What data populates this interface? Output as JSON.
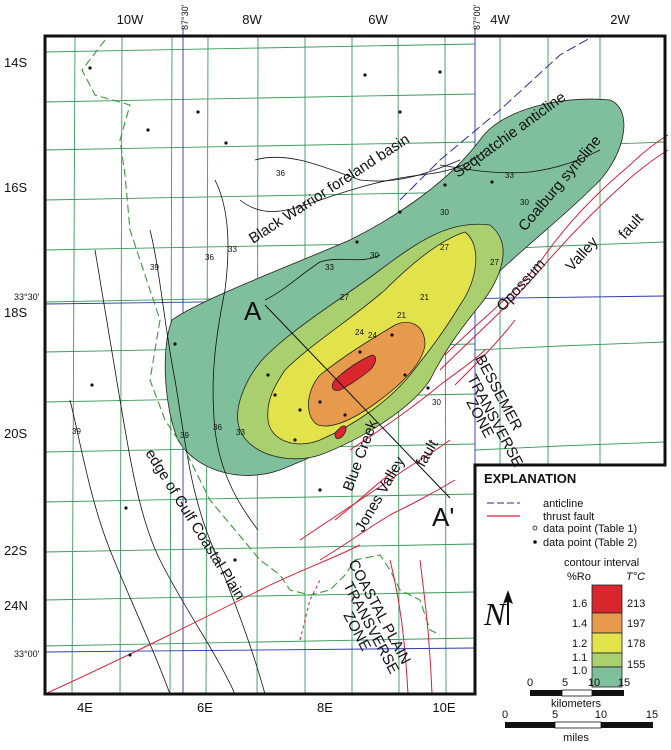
{
  "axes": {
    "top_ranges": [
      "10W",
      "8W",
      "6W",
      "4W",
      "2W"
    ],
    "bottom_ranges": [
      "4E",
      "6E",
      "8E",
      "10E"
    ],
    "left_townships": [
      "14S",
      "16S",
      "18S",
      "20S",
      "22S",
      "24N"
    ],
    "meridians": [
      "87°30'",
      "87°00'"
    ],
    "parallels": [
      "33°30'",
      "33°00'"
    ]
  },
  "features": {
    "sequatchie": "Sequatchie anticline",
    "black_warrior": "Black Warrior foreland basin",
    "coalburg": "Coalburg syncline",
    "opossum": "Opossum",
    "valley": "Valley",
    "fault": "fault",
    "bessemer": "BESSEMER",
    "transverse": "TRANSVERSE",
    "zone": "ZONE",
    "edge_gulf": "edge of Gulf Coastal Plain",
    "blue_creek": "Blue Creek",
    "jones_valley": "Jones Valley",
    "jones_fault": "fault",
    "coastal_plain": "COASTAL PLAIN",
    "coastal_transverse": "TRANSVERSE",
    "coastal_zone": "ZONE",
    "section_a": "A",
    "section_a_prime": "A'"
  },
  "contour_labels": [
    "39",
    "36",
    "33",
    "30",
    "27",
    "24",
    "21",
    "33",
    "30",
    "36",
    "33",
    "39",
    "39",
    "36",
    "33",
    "27",
    "30",
    "27",
    "24",
    "21",
    "30"
  ],
  "legend": {
    "title": "EXPLANATION",
    "anticline": "anticline",
    "thrust_fault": "thrust fault",
    "dp1": "data point (Table 1)",
    "dp2": "data point (Table 2)",
    "ci_title": "contour interval",
    "ro_label": "%Ro",
    "t_label": "T°C",
    "ro_values": [
      "1.6",
      "1.4",
      "1.2",
      "1.1",
      "1.0"
    ],
    "t_values": [
      "213",
      "197",
      "178",
      "155"
    ],
    "north": "N"
  },
  "zone_colors": {
    "zone_1.0_1.1": "#7fbf9c",
    "zone_1.1_1.2": "#a9cf6e",
    "zone_1.2_1.4": "#e2e24a",
    "zone_1.4_1.6": "#e89a4c",
    "zone_above_1.6": "#d9262f",
    "thrust_fault": "#d6213a",
    "anticline": "#2a2a9a",
    "green_dash": "#3a9a3a",
    "grid": "#3a9a5a"
  },
  "scales": {
    "km_title": "kilometers",
    "km_ticks": [
      "0",
      "5",
      "10",
      "15"
    ],
    "mi_title": "miles",
    "mi_ticks": [
      "0",
      "5",
      "10",
      "15"
    ]
  }
}
